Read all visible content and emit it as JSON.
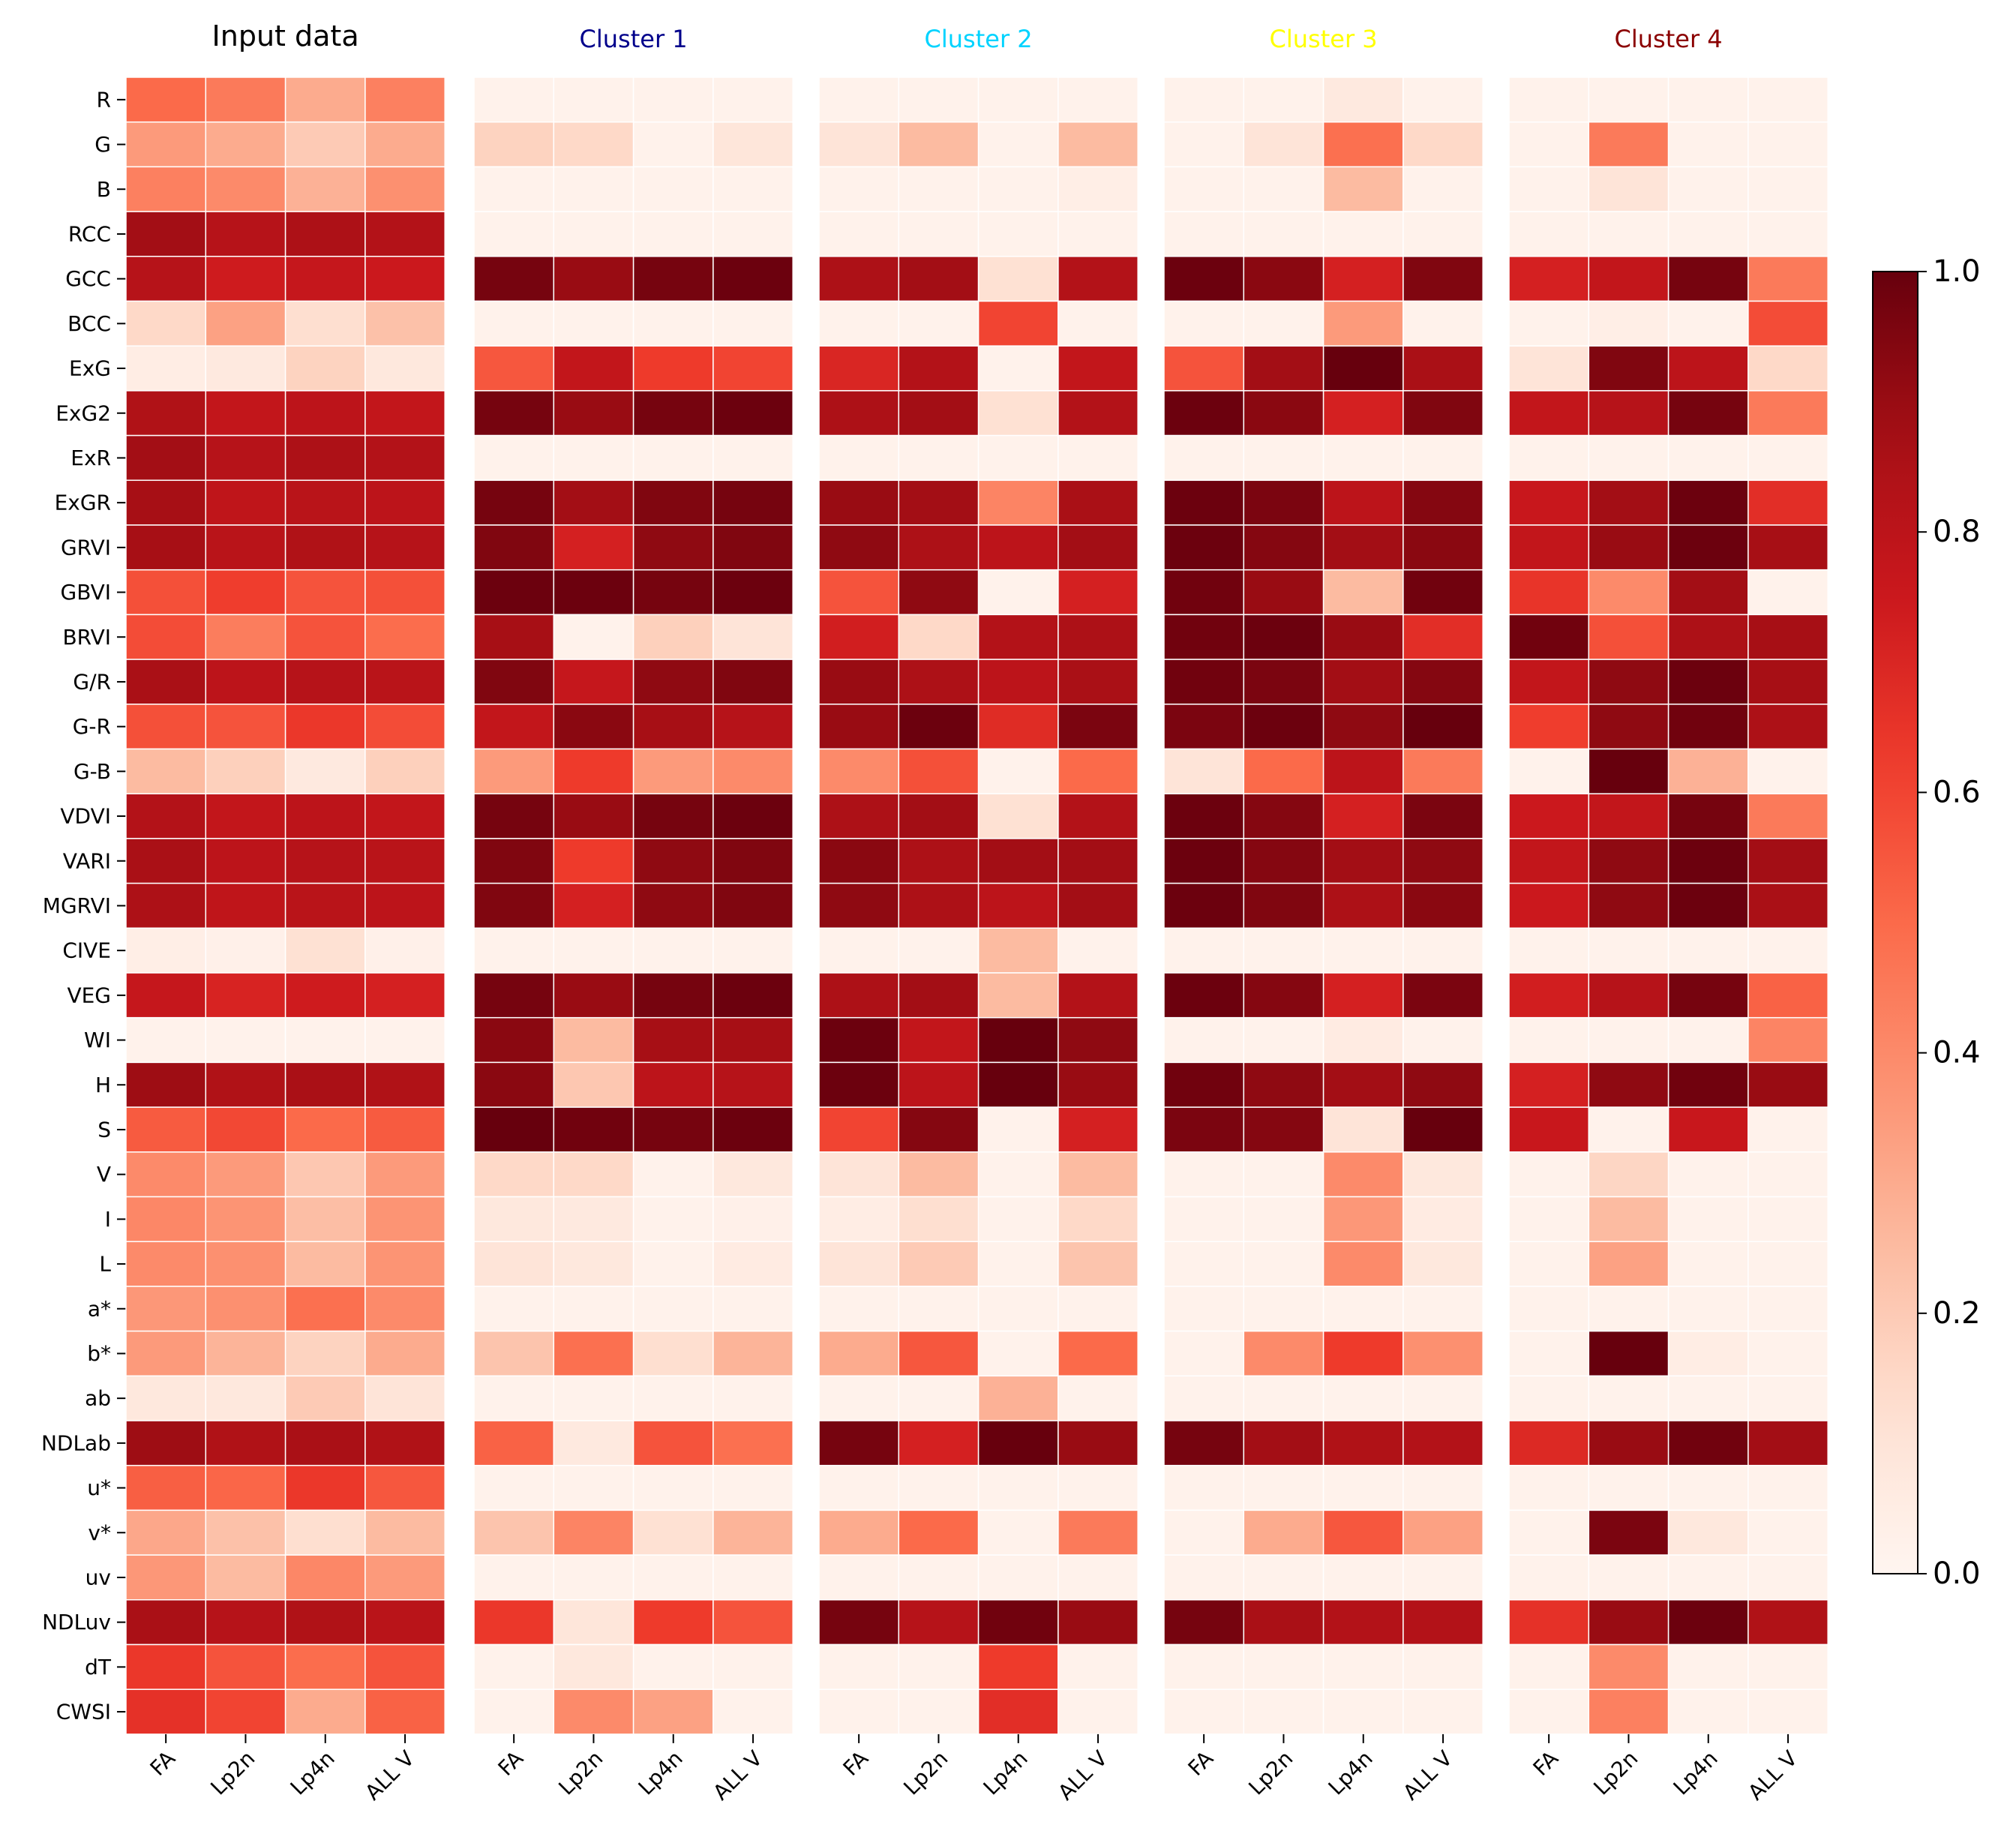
{
  "chart_data": {
    "type": "heatmap",
    "rows": [
      "R",
      "G",
      "B",
      "RCC",
      "GCC",
      "BCC",
      "ExG",
      "ExG2",
      "ExR",
      "ExGR",
      "GRVI",
      "GBVI",
      "BRVI",
      "G/R",
      "G-R",
      "G-B",
      "VDVI",
      "VARI",
      "MGRVI",
      "CIVE",
      "VEG",
      "WI",
      "H",
      "S",
      "V",
      "I",
      "L",
      "a*",
      "b*",
      "ab",
      "NDLab",
      "u*",
      "v*",
      "uv",
      "NDLuv",
      "dT",
      "CWSI"
    ],
    "columns": [
      "FA",
      "Lp2n",
      "Lp4n",
      "ALL V"
    ],
    "panels": [
      {
        "title": "Input data",
        "title_color": "#000000",
        "values": [
          [
            0.5,
            0.45,
            0.3,
            0.43
          ],
          [
            0.35,
            0.3,
            0.2,
            0.3
          ],
          [
            0.43,
            0.4,
            0.28,
            0.38
          ],
          [
            0.88,
            0.82,
            0.85,
            0.83
          ],
          [
            0.82,
            0.74,
            0.77,
            0.75
          ],
          [
            0.15,
            0.33,
            0.13,
            0.23
          ],
          [
            0.05,
            0.07,
            0.17,
            0.08
          ],
          [
            0.84,
            0.78,
            0.8,
            0.78
          ],
          [
            0.88,
            0.82,
            0.85,
            0.83
          ],
          [
            0.87,
            0.79,
            0.81,
            0.8
          ],
          [
            0.87,
            0.81,
            0.84,
            0.82
          ],
          [
            0.57,
            0.62,
            0.56,
            0.57
          ],
          [
            0.58,
            0.44,
            0.56,
            0.49
          ],
          [
            0.86,
            0.8,
            0.82,
            0.81
          ],
          [
            0.57,
            0.56,
            0.64,
            0.58
          ],
          [
            0.25,
            0.18,
            0.07,
            0.18
          ],
          [
            0.83,
            0.78,
            0.8,
            0.78
          ],
          [
            0.86,
            0.8,
            0.82,
            0.81
          ],
          [
            0.85,
            0.79,
            0.81,
            0.8
          ],
          [
            0.04,
            0.03,
            0.12,
            0.03
          ],
          [
            0.77,
            0.71,
            0.74,
            0.72
          ],
          [
            0.02,
            0.02,
            0.02,
            0.02
          ],
          [
            0.89,
            0.84,
            0.86,
            0.84
          ],
          [
            0.54,
            0.59,
            0.5,
            0.54
          ],
          [
            0.4,
            0.35,
            0.21,
            0.35
          ],
          [
            0.41,
            0.37,
            0.24,
            0.37
          ],
          [
            0.4,
            0.38,
            0.25,
            0.37
          ],
          [
            0.36,
            0.38,
            0.48,
            0.4
          ],
          [
            0.35,
            0.27,
            0.17,
            0.3
          ],
          [
            0.08,
            0.08,
            0.2,
            0.1
          ],
          [
            0.89,
            0.84,
            0.86,
            0.84
          ],
          [
            0.53,
            0.51,
            0.64,
            0.55
          ],
          [
            0.31,
            0.23,
            0.13,
            0.25
          ],
          [
            0.36,
            0.25,
            0.41,
            0.35
          ],
          [
            0.86,
            0.82,
            0.84,
            0.81
          ],
          [
            0.64,
            0.56,
            0.49,
            0.56
          ],
          [
            0.66,
            0.6,
            0.3,
            0.52
          ]
        ]
      },
      {
        "title": "Cluster 1",
        "title_color": "#00008B",
        "values": [
          [
            0.02,
            0.02,
            0.02,
            0.02
          ],
          [
            0.17,
            0.15,
            0.02,
            0.09
          ],
          [
            0.02,
            0.02,
            0.02,
            0.02
          ],
          [
            0.02,
            0.02,
            0.02,
            0.02
          ],
          [
            0.97,
            0.9,
            0.97,
            0.99
          ],
          [
            0.02,
            0.02,
            0.02,
            0.02
          ],
          [
            0.55,
            0.78,
            0.63,
            0.6
          ],
          [
            0.97,
            0.9,
            0.97,
            0.99
          ],
          [
            0.02,
            0.02,
            0.02,
            0.02
          ],
          [
            0.97,
            0.88,
            0.95,
            0.97
          ],
          [
            0.95,
            0.72,
            0.92,
            0.95
          ],
          [
            0.99,
            0.99,
            0.97,
            0.99
          ],
          [
            0.87,
            0.02,
            0.18,
            0.1
          ],
          [
            0.95,
            0.77,
            0.92,
            0.95
          ],
          [
            0.78,
            0.93,
            0.87,
            0.82
          ],
          [
            0.35,
            0.63,
            0.35,
            0.4
          ],
          [
            0.97,
            0.9,
            0.97,
            0.99
          ],
          [
            0.95,
            0.63,
            0.92,
            0.95
          ],
          [
            0.95,
            0.72,
            0.92,
            0.95
          ],
          [
            0.02,
            0.02,
            0.02,
            0.02
          ],
          [
            0.97,
            0.9,
            0.97,
            0.99
          ],
          [
            0.93,
            0.25,
            0.87,
            0.87
          ],
          [
            0.93,
            0.21,
            0.8,
            0.82
          ],
          [
            1.0,
            0.98,
            0.97,
            0.99
          ],
          [
            0.15,
            0.15,
            0.02,
            0.08
          ],
          [
            0.08,
            0.07,
            0.02,
            0.03
          ],
          [
            0.1,
            0.08,
            0.02,
            0.06
          ],
          [
            0.02,
            0.02,
            0.02,
            0.02
          ],
          [
            0.22,
            0.48,
            0.13,
            0.27
          ],
          [
            0.02,
            0.02,
            0.02,
            0.02
          ],
          [
            0.52,
            0.07,
            0.56,
            0.48
          ],
          [
            0.02,
            0.02,
            0.02,
            0.02
          ],
          [
            0.22,
            0.42,
            0.12,
            0.27
          ],
          [
            0.02,
            0.02,
            0.02,
            0.02
          ],
          [
            0.64,
            0.09,
            0.63,
            0.56
          ],
          [
            0.02,
            0.08,
            0.02,
            0.02
          ],
          [
            0.02,
            0.4,
            0.33,
            0.02
          ]
        ]
      },
      {
        "title": "Cluster 2",
        "title_color": "#00D3FF",
        "values": [
          [
            0.02,
            0.02,
            0.02,
            0.02
          ],
          [
            0.1,
            0.25,
            0.02,
            0.25
          ],
          [
            0.02,
            0.02,
            0.02,
            0.04
          ],
          [
            0.02,
            0.02,
            0.02,
            0.02
          ],
          [
            0.85,
            0.88,
            0.12,
            0.83
          ],
          [
            0.02,
            0.02,
            0.6,
            0.02
          ],
          [
            0.7,
            0.83,
            0.02,
            0.78
          ],
          [
            0.85,
            0.88,
            0.12,
            0.83
          ],
          [
            0.02,
            0.02,
            0.02,
            0.02
          ],
          [
            0.9,
            0.88,
            0.42,
            0.86
          ],
          [
            0.92,
            0.85,
            0.8,
            0.88
          ],
          [
            0.56,
            0.92,
            0.02,
            0.72
          ],
          [
            0.73,
            0.15,
            0.83,
            0.85
          ],
          [
            0.9,
            0.85,
            0.8,
            0.86
          ],
          [
            0.9,
            0.99,
            0.68,
            0.96
          ],
          [
            0.4,
            0.57,
            0.02,
            0.5
          ],
          [
            0.85,
            0.88,
            0.12,
            0.83
          ],
          [
            0.93,
            0.85,
            0.88,
            0.88
          ],
          [
            0.92,
            0.85,
            0.8,
            0.88
          ],
          [
            0.02,
            0.02,
            0.25,
            0.02
          ],
          [
            0.85,
            0.88,
            0.25,
            0.83
          ],
          [
            0.99,
            0.78,
            1.0,
            0.92
          ],
          [
            0.99,
            0.8,
            1.0,
            0.9
          ],
          [
            0.6,
            0.94,
            0.02,
            0.72
          ],
          [
            0.1,
            0.25,
            0.02,
            0.25
          ],
          [
            0.05,
            0.13,
            0.02,
            0.15
          ],
          [
            0.1,
            0.2,
            0.02,
            0.22
          ],
          [
            0.02,
            0.02,
            0.02,
            0.02
          ],
          [
            0.3,
            0.55,
            0.02,
            0.5
          ],
          [
            0.02,
            0.02,
            0.28,
            0.02
          ],
          [
            0.97,
            0.72,
            1.0,
            0.9
          ],
          [
            0.02,
            0.02,
            0.02,
            0.02
          ],
          [
            0.3,
            0.5,
            0.02,
            0.45
          ],
          [
            0.02,
            0.02,
            0.02,
            0.02
          ],
          [
            0.97,
            0.82,
            0.98,
            0.9
          ],
          [
            0.02,
            0.02,
            0.63,
            0.02
          ],
          [
            0.02,
            0.02,
            0.67,
            0.02
          ]
        ]
      },
      {
        "title": "Cluster 3",
        "title_color": "#FFFF00",
        "values": [
          [
            0.02,
            0.02,
            0.07,
            0.02
          ],
          [
            0.02,
            0.1,
            0.48,
            0.15
          ],
          [
            0.02,
            0.02,
            0.25,
            0.02
          ],
          [
            0.02,
            0.02,
            0.02,
            0.02
          ],
          [
            0.99,
            0.93,
            0.72,
            0.95
          ],
          [
            0.02,
            0.02,
            0.35,
            0.02
          ],
          [
            0.56,
            0.88,
            1.0,
            0.86
          ],
          [
            0.99,
            0.93,
            0.72,
            0.95
          ],
          [
            0.02,
            0.02,
            0.02,
            0.02
          ],
          [
            0.99,
            0.96,
            0.8,
            0.94
          ],
          [
            0.99,
            0.94,
            0.88,
            0.93
          ],
          [
            0.98,
            0.9,
            0.25,
            0.98
          ],
          [
            0.98,
            0.99,
            0.9,
            0.67
          ],
          [
            0.98,
            0.96,
            0.88,
            0.94
          ],
          [
            0.96,
            0.99,
            0.92,
            1.0
          ],
          [
            0.1,
            0.5,
            0.8,
            0.45
          ],
          [
            0.99,
            0.94,
            0.72,
            0.96
          ],
          [
            0.99,
            0.94,
            0.88,
            0.92
          ],
          [
            0.99,
            0.95,
            0.85,
            0.93
          ],
          [
            0.02,
            0.02,
            0.02,
            0.02
          ],
          [
            0.99,
            0.94,
            0.72,
            0.96
          ],
          [
            0.02,
            0.02,
            0.06,
            0.02
          ],
          [
            0.98,
            0.92,
            0.88,
            0.92
          ],
          [
            0.96,
            0.94,
            0.1,
            1.0
          ],
          [
            0.02,
            0.02,
            0.4,
            0.08
          ],
          [
            0.02,
            0.02,
            0.36,
            0.06
          ],
          [
            0.02,
            0.02,
            0.4,
            0.08
          ],
          [
            0.02,
            0.02,
            0.02,
            0.02
          ],
          [
            0.02,
            0.4,
            0.63,
            0.38
          ],
          [
            0.02,
            0.02,
            0.02,
            0.02
          ],
          [
            0.97,
            0.88,
            0.84,
            0.83
          ],
          [
            0.02,
            0.02,
            0.02,
            0.02
          ],
          [
            0.02,
            0.3,
            0.55,
            0.33
          ],
          [
            0.02,
            0.02,
            0.02,
            0.02
          ],
          [
            0.97,
            0.86,
            0.83,
            0.83
          ],
          [
            0.02,
            0.02,
            0.02,
            0.02
          ],
          [
            0.02,
            0.02,
            0.02,
            0.02
          ]
        ]
      },
      {
        "title": "Cluster 4",
        "title_color": "#8B0000",
        "values": [
          [
            0.02,
            0.02,
            0.02,
            0.02
          ],
          [
            0.02,
            0.45,
            0.02,
            0.02
          ],
          [
            0.02,
            0.1,
            0.02,
            0.02
          ],
          [
            0.02,
            0.02,
            0.02,
            0.02
          ],
          [
            0.72,
            0.78,
            0.97,
            0.45
          ],
          [
            0.02,
            0.04,
            0.02,
            0.58
          ],
          [
            0.1,
            0.95,
            0.8,
            0.15
          ],
          [
            0.78,
            0.82,
            0.97,
            0.45
          ],
          [
            0.02,
            0.02,
            0.02,
            0.02
          ],
          [
            0.76,
            0.88,
            0.99,
            0.67
          ],
          [
            0.78,
            0.9,
            0.99,
            0.87
          ],
          [
            0.65,
            0.4,
            0.88,
            0.02
          ],
          [
            0.98,
            0.57,
            0.85,
            0.87
          ],
          [
            0.78,
            0.92,
            0.99,
            0.87
          ],
          [
            0.62,
            0.92,
            0.98,
            0.85
          ],
          [
            0.02,
            1.0,
            0.28,
            0.02
          ],
          [
            0.75,
            0.78,
            0.97,
            0.45
          ],
          [
            0.78,
            0.92,
            0.99,
            0.88
          ],
          [
            0.75,
            0.92,
            0.99,
            0.86
          ],
          [
            0.02,
            0.02,
            0.02,
            0.02
          ],
          [
            0.73,
            0.82,
            0.97,
            0.52
          ],
          [
            0.02,
            0.02,
            0.02,
            0.42
          ],
          [
            0.72,
            0.92,
            0.98,
            0.9
          ],
          [
            0.76,
            0.02,
            0.76,
            0.02
          ],
          [
            0.02,
            0.16,
            0.02,
            0.02
          ],
          [
            0.02,
            0.25,
            0.02,
            0.02
          ],
          [
            0.02,
            0.33,
            0.02,
            0.02
          ],
          [
            0.02,
            0.02,
            0.02,
            0.02
          ],
          [
            0.02,
            1.0,
            0.05,
            0.02
          ],
          [
            0.02,
            0.02,
            0.02,
            0.02
          ],
          [
            0.69,
            0.9,
            0.98,
            0.88
          ],
          [
            0.02,
            0.02,
            0.02,
            0.02
          ],
          [
            0.02,
            0.96,
            0.08,
            0.02
          ],
          [
            0.02,
            0.02,
            0.02,
            0.02
          ],
          [
            0.66,
            0.9,
            0.99,
            0.84
          ],
          [
            0.02,
            0.4,
            0.02,
            0.02
          ],
          [
            0.02,
            0.43,
            0.02,
            0.02
          ]
        ]
      }
    ],
    "colorbar": {
      "colormap": "Reds",
      "range": [
        0.0,
        1.0
      ],
      "ticks": [
        "0.0",
        "0.2",
        "0.4",
        "0.6",
        "0.8",
        "1.0"
      ]
    }
  }
}
